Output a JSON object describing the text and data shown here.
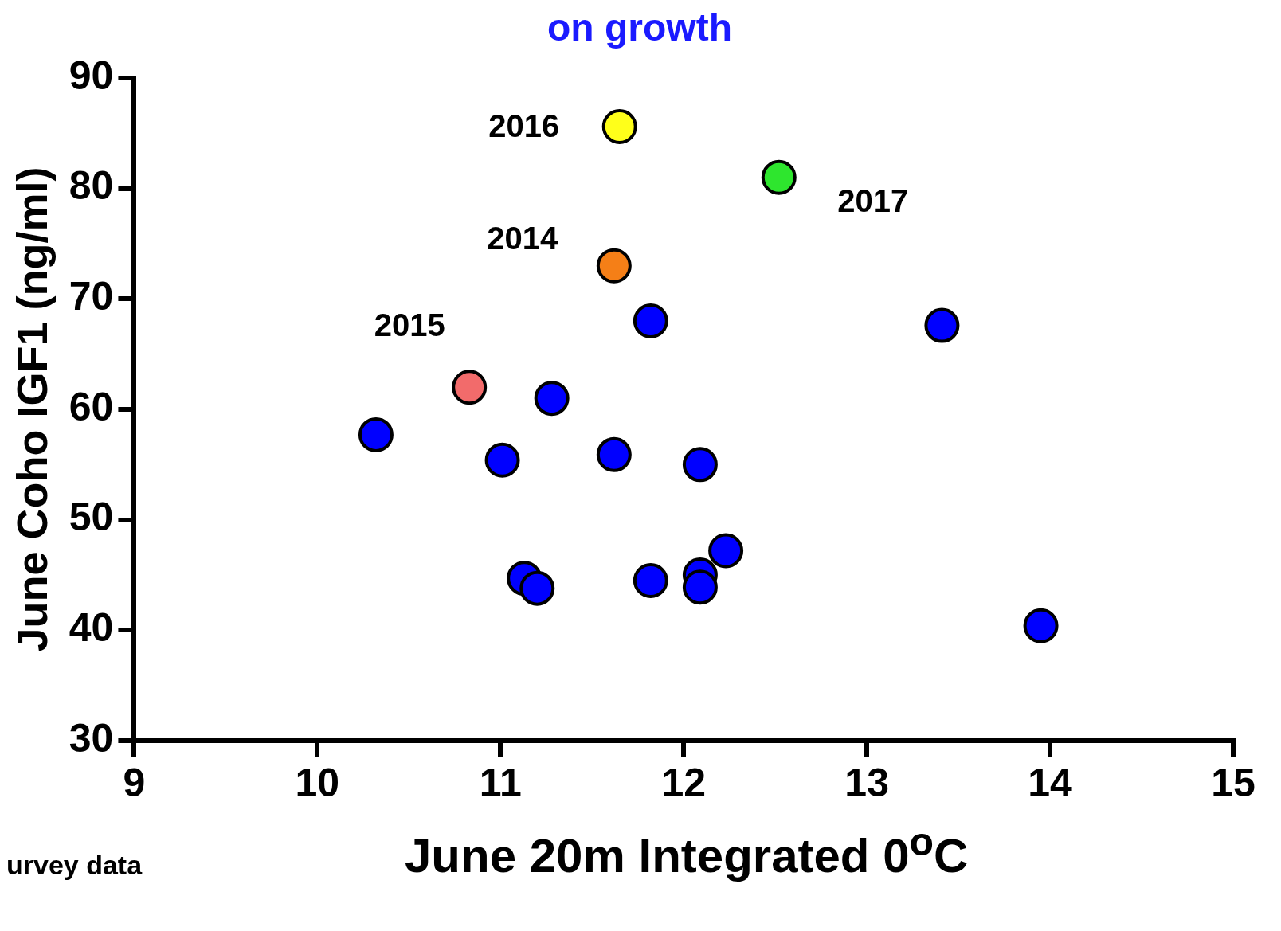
{
  "chart_data": {
    "type": "scatter",
    "title": "on growth",
    "xlabel": "June 20m Integrated   0$^{o}$C",
    "ylabel": "June Coho IGF1 (ng/ml)",
    "series": [
      {
        "color": "#0000ff",
        "x": [
          11.82,
          13.41,
          11.28,
          10.32,
          11.01,
          11.62,
          12.09,
          12.23,
          11.13,
          11.2,
          11.82,
          12.09,
          12.09,
          13.95
        ],
        "values": [
          68.0,
          67.6,
          61.0,
          57.7,
          55.4,
          55.9,
          55.0,
          47.2,
          44.7,
          43.8,
          44.5,
          45.0,
          43.9,
          40.4
        ]
      },
      {
        "colors": [
          "#ffff1a",
          "#2ee62e",
          "#f57f17",
          "#f26b6b"
        ],
        "x": [
          11.65,
          12.52,
          11.62,
          10.83
        ],
        "values": [
          85.6,
          81.0,
          73.0,
          62.0
        ]
      }
    ],
    "annotations": [
      {
        "text": "2016",
        "x": 11.65,
        "y": 85.6
      },
      {
        "text": "2017",
        "x": 12.52,
        "y": 81.0
      },
      {
        "text": "2014",
        "x": 11.62,
        "y": 73.0
      },
      {
        "text": "2015",
        "x": 10.83,
        "y": 62.0
      },
      "urvey data"
    ],
    "xlim": [
      9,
      15
    ],
    "xticks": [
      9,
      10,
      11,
      12,
      13,
      14,
      15
    ],
    "ylim": [
      30,
      90
    ],
    "yticks": [
      30,
      40,
      50,
      60,
      70,
      80,
      90
    ],
    "grid": false,
    "legend": false,
    "marker": "circle"
  }
}
